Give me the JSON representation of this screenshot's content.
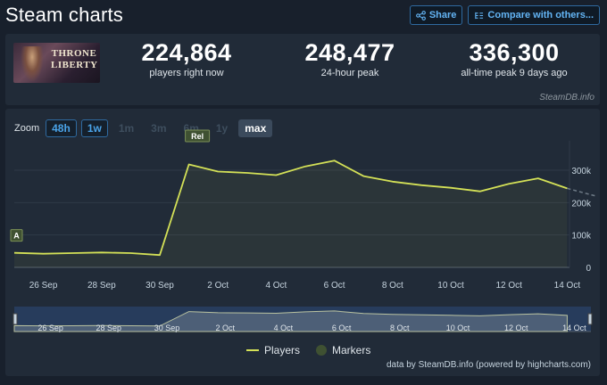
{
  "header": {
    "title": "Steam charts",
    "share_label": "Share",
    "compare_label": "Compare with others..."
  },
  "game": {
    "logo_text": "THRONE LIBERTY"
  },
  "stats": [
    {
      "value": "224,864",
      "label": "players right now"
    },
    {
      "value": "248,477",
      "label": "24-hour peak"
    },
    {
      "value": "336,300",
      "label": "all-time peak 9 days ago"
    }
  ],
  "steamdb_tag": "SteamDB.info",
  "zoom": {
    "label": "Zoom",
    "options": [
      "48h",
      "1w",
      "1m",
      "3m",
      "6m",
      "1y",
      "max"
    ],
    "active": [
      "48h",
      "1w"
    ],
    "selected": "max"
  },
  "chart_data": {
    "type": "line",
    "y_axis_ticks": [
      "0",
      "100k",
      "200k",
      "300k"
    ],
    "ylim": [
      0,
      380000
    ],
    "x_tick_labels": [
      "26 Sep",
      "28 Sep",
      "30 Sep",
      "2 Oct",
      "4 Oct",
      "6 Oct",
      "8 Oct",
      "10 Oct",
      "12 Oct",
      "14 Oct"
    ],
    "series": [
      {
        "name": "Players",
        "color": "#d4e157",
        "x": [
          "25 Sep",
          "26 Sep",
          "27 Sep",
          "28 Sep",
          "29 Sep",
          "30 Sep",
          "1 Oct",
          "2 Oct",
          "3 Oct",
          "4 Oct",
          "5 Oct",
          "6 Oct",
          "7 Oct",
          "8 Oct",
          "9 Oct",
          "10 Oct",
          "11 Oct",
          "12 Oct",
          "13 Oct",
          "14 Oct"
        ],
        "y": [
          45000,
          42000,
          44000,
          46000,
          44000,
          38000,
          318000,
          296000,
          292000,
          285000,
          312000,
          330000,
          282000,
          265000,
          254000,
          246000,
          235000,
          258000,
          275000,
          244000
        ]
      }
    ],
    "forecast": {
      "x": [
        "14 Oct",
        "15 Oct"
      ],
      "y": [
        244000,
        220000
      ]
    },
    "markers": [
      {
        "label": "A",
        "x": "25 Sep"
      },
      {
        "label": "Rel",
        "x": "1 Oct"
      }
    ],
    "legend": [
      "Players",
      "Markers"
    ],
    "navigator_labels": [
      "26 Sep",
      "28 Sep",
      "30 Sep",
      "2 Oct",
      "4 Oct",
      "6 Oct",
      "8 Oct",
      "10 Oct",
      "12 Oct",
      "14 Oct"
    ]
  },
  "credit": "data by SteamDB.info (powered by highcharts.com)"
}
